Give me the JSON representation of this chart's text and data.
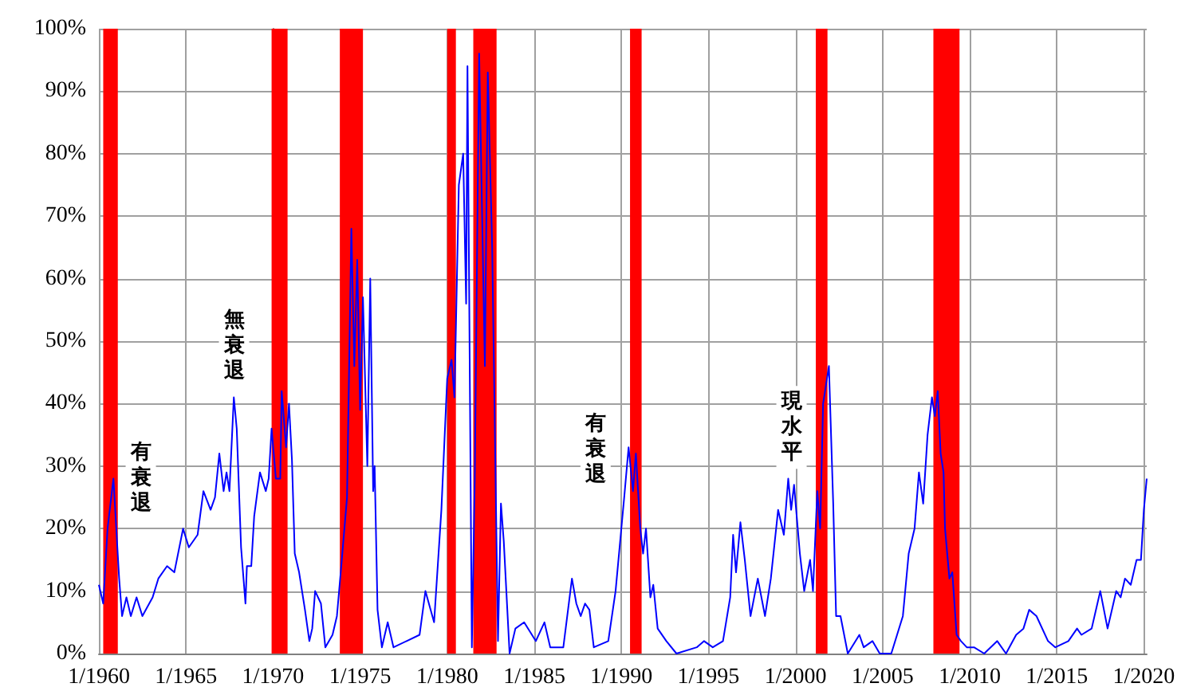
{
  "chart_data": {
    "type": "line",
    "x": [
      "1960-01",
      "1960-04",
      "1960-07",
      "1960-11",
      "1961-03",
      "1961-05",
      "1961-08",
      "1961-11",
      "1962-03",
      "1962-07",
      "1963-02",
      "1963-06",
      "1963-12",
      "1964-05",
      "1964-11",
      "1965-03",
      "1965-09",
      "1966-01",
      "1966-06",
      "1966-09",
      "1966-12",
      "1967-03",
      "1967-05",
      "1967-07",
      "1967-10",
      "1967-12",
      "1968-03",
      "1968-06",
      "1968-07",
      "1968-10",
      "1968-12",
      "1969-04",
      "1969-08",
      "1969-10",
      "1969-12",
      "1970-03",
      "1970-06",
      "1970-07",
      "1970-10",
      "1970-12",
      "1971-02",
      "1971-04",
      "1971-07",
      "1971-11",
      "1972-02",
      "1972-04",
      "1972-06",
      "1972-10",
      "1973-01",
      "1973-06",
      "1973-09",
      "1973-12",
      "1974-04",
      "1974-07",
      "1974-09",
      "1974-11",
      "1975-01",
      "1975-03",
      "1975-06",
      "1975-08",
      "1975-10",
      "1975-11",
      "1976-01",
      "1976-04",
      "1976-08",
      "1976-12",
      "1977-09",
      "1978-06",
      "1978-10",
      "1979-04",
      "1979-09",
      "1980-01",
      "1980-04",
      "1980-06",
      "1980-09",
      "1980-12",
      "1981-02",
      "1981-03",
      "1981-06",
      "1981-08",
      "1981-11",
      "1982-03",
      "1982-05",
      "1982-08",
      "1982-12",
      "1983-02",
      "1983-04",
      "1983-08",
      "1983-12",
      "1984-06",
      "1985-02",
      "1985-08",
      "1985-12",
      "1986-09",
      "1987-03",
      "1987-06",
      "1987-09",
      "1987-12",
      "1988-03",
      "1988-06",
      "1989-04",
      "1989-09",
      "1990-03",
      "1990-06",
      "1990-09",
      "1990-11",
      "1991-02",
      "1991-04",
      "1991-06",
      "1991-09",
      "1991-11",
      "1992-02",
      "1992-08",
      "1993-03",
      "1994-05",
      "1994-10",
      "1995-04",
      "1995-11",
      "1996-04",
      "1996-06",
      "1996-08",
      "1996-11",
      "1997-02",
      "1997-06",
      "1997-11",
      "1998-04",
      "1998-08",
      "1999-01",
      "1999-05",
      "1999-08",
      "1999-10",
      "1999-12",
      "2000-04",
      "2000-07",
      "2000-11",
      "2001-01",
      "2001-04",
      "2001-06",
      "2001-08",
      "2001-12",
      "2002-03",
      "2002-05",
      "2002-08",
      "2003-01",
      "2003-09",
      "2003-12",
      "2004-06",
      "2004-11",
      "2005-07",
      "2006-03",
      "2006-07",
      "2006-11",
      "2007-02",
      "2007-05",
      "2007-08",
      "2007-11",
      "2008-01",
      "2008-03",
      "2008-05",
      "2008-07",
      "2008-08",
      "2008-11",
      "2009-01",
      "2009-04",
      "2009-07",
      "2009-11",
      "2010-04",
      "2010-11",
      "2011-08",
      "2012-02",
      "2012-09",
      "2013-02",
      "2013-06",
      "2013-11",
      "2014-07",
      "2014-12",
      "2015-09",
      "2016-03",
      "2016-06",
      "2017-01",
      "2017-07",
      "2017-12",
      "2018-06",
      "2018-09",
      "2018-12",
      "2019-04",
      "2019-08",
      "2019-11",
      "2020-01",
      "2020-03"
    ],
    "series": [
      {
        "color": "#0000ff",
        "values": [
          11,
          8,
          20,
          28,
          12,
          6,
          9,
          6,
          9,
          6,
          9,
          12,
          14,
          13,
          20,
          17,
          19,
          26,
          23,
          25,
          32,
          26,
          29,
          26,
          41,
          36,
          17,
          8,
          14,
          14,
          22,
          29,
          26,
          28,
          36,
          28,
          28,
          42,
          33,
          40,
          31,
          16,
          13,
          7,
          2,
          4,
          10,
          8,
          1,
          3,
          6,
          14,
          25,
          68,
          46,
          63,
          39,
          57,
          30,
          60,
          26,
          30,
          7,
          1,
          5,
          1,
          2,
          3,
          10,
          5,
          23,
          44,
          47,
          41,
          75,
          80,
          56,
          94,
          1,
          28,
          96,
          46,
          93,
          65,
          2,
          24,
          18,
          0,
          4,
          5,
          2,
          5,
          1,
          1,
          12,
          8,
          6,
          8,
          7,
          1,
          2,
          10,
          25,
          33,
          26,
          32,
          20,
          16,
          20,
          9,
          11,
          4,
          2,
          0,
          1,
          2,
          1,
          2,
          9,
          19,
          13,
          21,
          15,
          6,
          12,
          6,
          12,
          23,
          19,
          28,
          23,
          27,
          16,
          10,
          15,
          10,
          26,
          20,
          40,
          46,
          24,
          6,
          6,
          0,
          3,
          1,
          2,
          0,
          0,
          6,
          16,
          20,
          29,
          24,
          35,
          41,
          38,
          42,
          32,
          29,
          20,
          12,
          13,
          3,
          2,
          1,
          1,
          0,
          2,
          0,
          3,
          4,
          7,
          6,
          2,
          1,
          2,
          4,
          3,
          4,
          10,
          4,
          10,
          9,
          12,
          11,
          15,
          15,
          23,
          28
        ]
      }
    ],
    "xlim": [
      "1960-01",
      "2020-03"
    ],
    "xticks": [
      {
        "value": "1960-01",
        "label": "1/1960"
      },
      {
        "value": "1965-01",
        "label": "1/1965"
      },
      {
        "value": "1970-01",
        "label": "1/1970"
      },
      {
        "value": "1975-01",
        "label": "1/1975"
      },
      {
        "value": "1980-01",
        "label": "1/1980"
      },
      {
        "value": "1985-01",
        "label": "1/1985"
      },
      {
        "value": "1990-01",
        "label": "1/1990"
      },
      {
        "value": "1995-01",
        "label": "1/1995"
      },
      {
        "value": "2000-01",
        "label": "1/2000"
      },
      {
        "value": "2005-01",
        "label": "1/2005"
      },
      {
        "value": "2010-01",
        "label": "1/2010"
      },
      {
        "value": "2015-01",
        "label": "1/2015"
      },
      {
        "value": "2020-01",
        "label": "1/2020"
      }
    ],
    "ylim": [
      0,
      100
    ],
    "yticks": [
      {
        "value": 0,
        "label": "0%"
      },
      {
        "value": 10,
        "label": "10%"
      },
      {
        "value": 20,
        "label": "20%"
      },
      {
        "value": 30,
        "label": "30%"
      },
      {
        "value": 40,
        "label": "40%"
      },
      {
        "value": 50,
        "label": "50%"
      },
      {
        "value": 60,
        "label": "60%"
      },
      {
        "value": 70,
        "label": "70%"
      },
      {
        "value": 80,
        "label": "80%"
      },
      {
        "value": 90,
        "label": "90%"
      },
      {
        "value": 100,
        "label": "100%"
      }
    ],
    "bands": [
      {
        "axis": "x",
        "from": "1960-04",
        "to": "1961-02",
        "color": "#ff0000"
      },
      {
        "axis": "x",
        "from": "1969-12",
        "to": "1970-11",
        "color": "#ff0000"
      },
      {
        "axis": "x",
        "from": "1973-11",
        "to": "1975-03",
        "color": "#ff0000"
      },
      {
        "axis": "x",
        "from": "1980-01",
        "to": "1980-07",
        "color": "#ff0000"
      },
      {
        "axis": "x",
        "from": "1981-07",
        "to": "1982-11",
        "color": "#ff0000"
      },
      {
        "axis": "x",
        "from": "1990-07",
        "to": "1991-03",
        "color": "#ff0000"
      },
      {
        "axis": "x",
        "from": "2001-03",
        "to": "2001-11",
        "color": "#ff0000"
      },
      {
        "axis": "x",
        "from": "2007-12",
        "to": "2009-06",
        "color": "#ff0000"
      }
    ],
    "annotations": [
      "有衰退",
      "無衰退",
      "有衰退",
      "現水平"
    ],
    "grid": true,
    "marker": "none",
    "line_style": "solid"
  }
}
